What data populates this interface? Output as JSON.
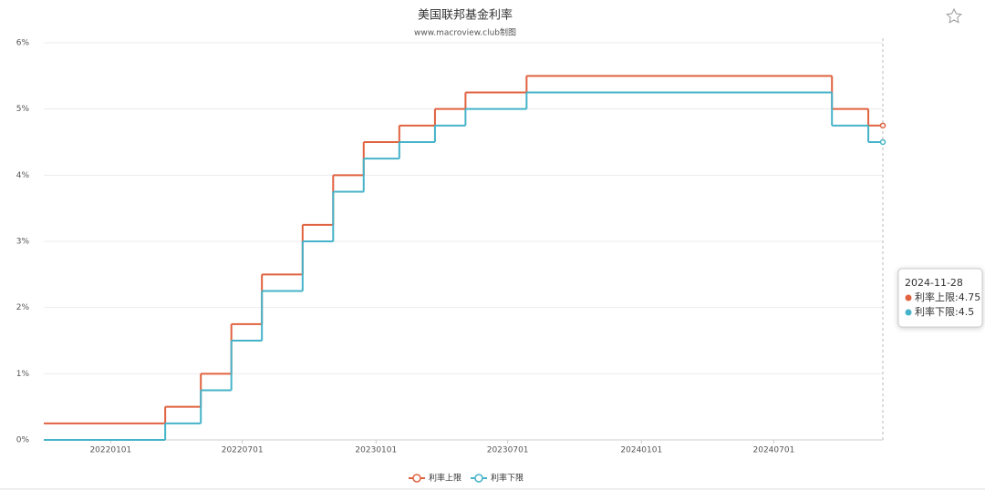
{
  "chart_data": {
    "type": "step-line",
    "title": "美国联邦基金利率",
    "subtitle": "www.macroview.club制图",
    "x": [
      "2021-10-01",
      "2022-03-17",
      "2022-05-05",
      "2022-06-16",
      "2022-07-28",
      "2022-09-22",
      "2022-11-03",
      "2022-12-15",
      "2023-02-02",
      "2023-03-23",
      "2023-05-04",
      "2023-07-27",
      "2024-09-19",
      "2024-11-08",
      "2024-11-28"
    ],
    "series": [
      {
        "name": "利率上限",
        "color": "#e0623f",
        "values": [
          0.25,
          0.5,
          1,
          1.75,
          2.5,
          3.25,
          4,
          4.5,
          4.75,
          5,
          5.25,
          5.5,
          5,
          4.75,
          4.75
        ]
      },
      {
        "name": "利率下限",
        "color": "#45b3c9",
        "values": [
          0,
          0.25,
          0.75,
          1.5,
          2.25,
          3,
          3.75,
          4.25,
          4.5,
          4.75,
          5,
          5.25,
          4.75,
          4.5,
          4.5
        ]
      }
    ],
    "xlim": [
      "2021-10-01",
      "2024-11-28"
    ],
    "xticks": [
      {
        "value": "2022-01-01",
        "label": "20220101"
      },
      {
        "value": "2022-07-01",
        "label": "20220701"
      },
      {
        "value": "2023-01-01",
        "label": "20230101"
      },
      {
        "value": "2023-07-01",
        "label": "20230701"
      },
      {
        "value": "2024-01-01",
        "label": "20240101"
      },
      {
        "value": "2024-07-01",
        "label": "20240701"
      }
    ],
    "ylim": [
      0,
      6
    ],
    "yticks": [
      {
        "value": 0,
        "label": "0%"
      },
      {
        "value": 1,
        "label": "1%"
      },
      {
        "value": 2,
        "label": "2%"
      },
      {
        "value": 3,
        "label": "3%"
      },
      {
        "value": 4,
        "label": "4%"
      },
      {
        "value": 5,
        "label": "5%"
      },
      {
        "value": 6,
        "label": "6%"
      }
    ],
    "grid": true,
    "tooltip": {
      "title": "2024-11-28",
      "items": [
        "利率上限:4.75",
        "利率下限:4.5"
      ]
    }
  }
}
